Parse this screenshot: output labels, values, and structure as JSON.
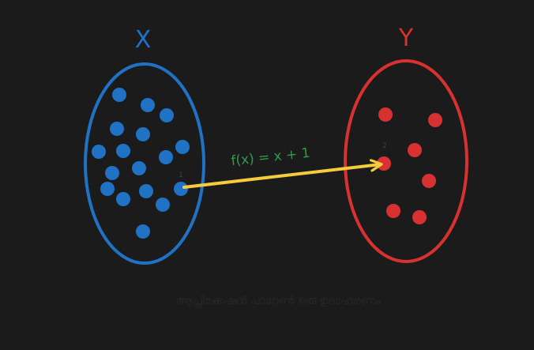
{
  "colors": {
    "background": "#1b1b1b",
    "set_x": "#1f72c4",
    "set_y": "#d83131",
    "arrow": "#f5cd3c",
    "function_label": "#2f9a4a"
  },
  "set_x": {
    "label": "X",
    "element_count": 18
  },
  "set_y": {
    "label": "Y",
    "element_count": 7
  },
  "mapping": {
    "label": "f(x) = x + 1",
    "domain_mark": "1",
    "codomain_mark": "2"
  },
  "caption": "ആപ്ലിക്കേഷൻ പാറ്റേൺ ഒരു ഉദാഹരണം"
}
